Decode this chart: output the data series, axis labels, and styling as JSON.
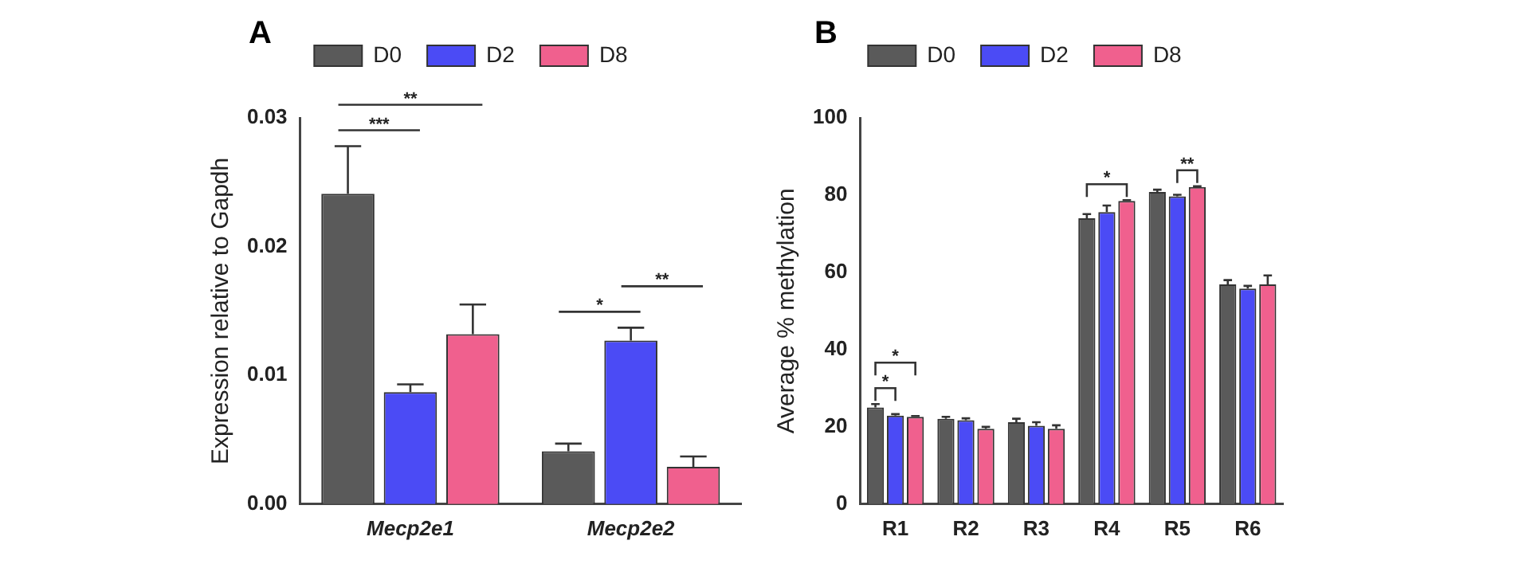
{
  "chart_data": [
    {
      "type": "bar",
      "title": "A",
      "ylabel": "Expression relative to Gapdh",
      "categories": [
        "Mecp2e1",
        "Mecp2e2"
      ],
      "ylim": [
        0,
        0.03
      ],
      "yticks": [
        {
          "value": 0,
          "label": "0.00"
        },
        {
          "value": 0.01,
          "label": "0.01"
        },
        {
          "value": 0.02,
          "label": "0.02"
        },
        {
          "value": 0.03,
          "label": "0.03"
        }
      ],
      "grid": false,
      "legend": "top",
      "series": [
        {
          "name": "D0",
          "color": "#5a5a5a",
          "values": [
            0.0241,
            0.0041
          ],
          "errors": [
            [
              0.0241,
              0.0278
            ],
            [
              0.0041,
              0.0047
            ]
          ]
        },
        {
          "name": "D2",
          "color": "#4b4bf5",
          "values": [
            0.0087,
            0.0127
          ],
          "errors": [
            [
              0.0087,
              0.0093
            ],
            [
              0.0127,
              0.0137
            ]
          ]
        },
        {
          "name": "D8",
          "color": "#f0608e",
          "values": [
            0.0132,
            0.0029
          ],
          "errors": [
            [
              0.0132,
              0.0155
            ],
            [
              0.0029,
              0.0037
            ]
          ]
        }
      ],
      "annotations": [
        "***",
        "**",
        "*",
        "**"
      ]
    },
    {
      "type": "bar",
      "title": "B",
      "ylabel": "Average % methylation",
      "categories": [
        "R1",
        "R2",
        "R3",
        "R4",
        "R5",
        "R6"
      ],
      "ylim": [
        0,
        100
      ],
      "yticks": [
        0,
        20,
        40,
        60,
        80,
        100
      ],
      "grid": false,
      "legend": "top",
      "series": [
        {
          "name": "D0",
          "color": "#5a5a5a",
          "values": [
            25.0,
            22.1,
            21.2,
            74.0,
            80.8,
            56.9
          ],
          "errors": [
            [
              25.0,
              25.9
            ],
            [
              22.1,
              22.6
            ],
            [
              21.2,
              22.1
            ],
            [
              74.0,
              75.1
            ],
            [
              80.8,
              81.4
            ],
            [
              56.9,
              58.0
            ]
          ]
        },
        {
          "name": "D2",
          "color": "#4b4bf5",
          "values": [
            22.9,
            21.7,
            20.3,
            75.6,
            79.7,
            55.8
          ],
          "errors": [
            [
              22.9,
              23.3
            ],
            [
              21.7,
              22.2
            ],
            [
              20.3,
              21.2
            ],
            [
              75.6,
              77.3
            ],
            [
              79.7,
              80.1
            ],
            [
              55.8,
              56.5
            ]
          ]
        },
        {
          "name": "D8",
          "color": "#f0608e",
          "values": [
            22.6,
            19.5,
            19.5,
            78.5,
            82.1,
            56.9
          ],
          "errors": [
            [
              22.6,
              22.8
            ],
            [
              19.5,
              20.0
            ],
            [
              19.5,
              20.4
            ],
            [
              78.5,
              78.7
            ],
            [
              82.1,
              82.3
            ],
            [
              56.9,
              59.2
            ]
          ]
        }
      ],
      "annotations": [
        "*",
        "*",
        "*",
        "**"
      ]
    }
  ]
}
